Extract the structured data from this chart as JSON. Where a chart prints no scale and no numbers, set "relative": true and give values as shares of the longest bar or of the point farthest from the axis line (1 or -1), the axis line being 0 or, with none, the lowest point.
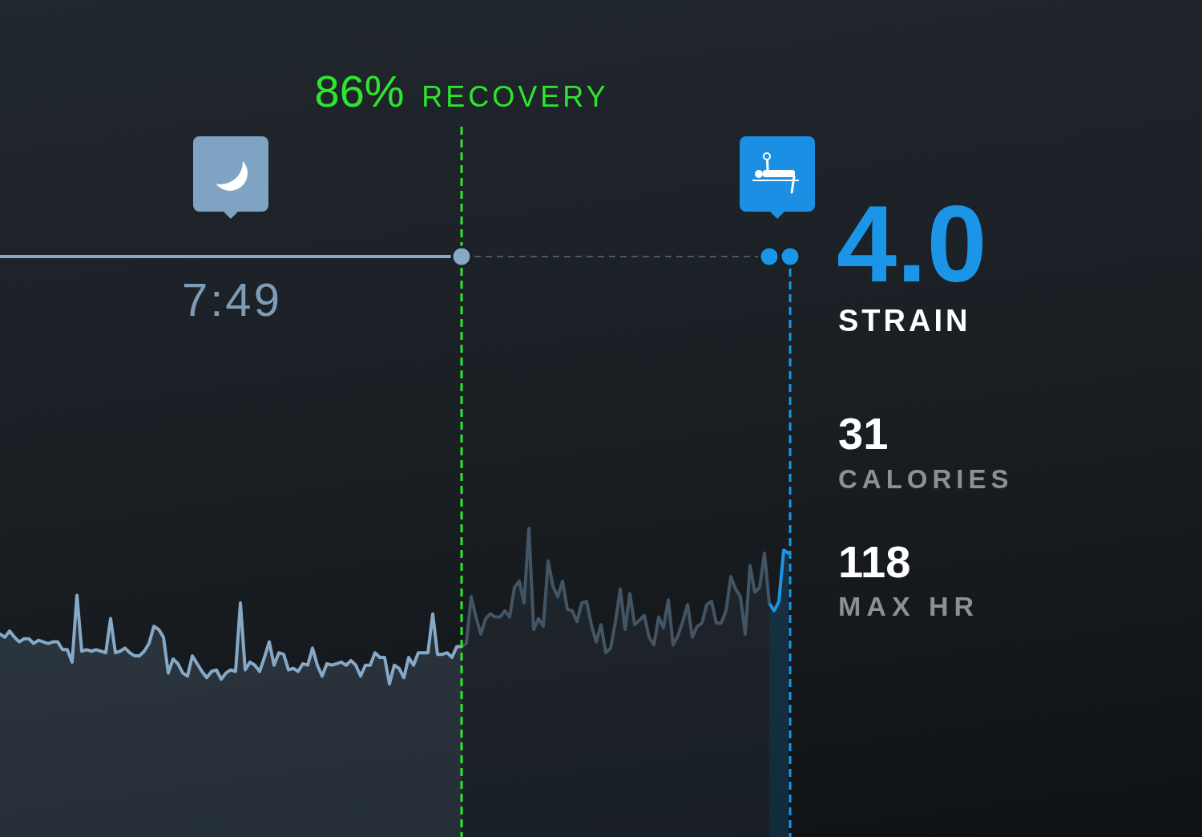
{
  "chart_data": {
    "type": "area",
    "relative": true,
    "tick_labels": false,
    "marker": "none",
    "categories": [
      null,
      null,
      null,
      null,
      null,
      null,
      null,
      null,
      null,
      null,
      null,
      null,
      null,
      null,
      null,
      null,
      null,
      null,
      null,
      null,
      null,
      null,
      null,
      null,
      null,
      null,
      null,
      null,
      null,
      null,
      null,
      null,
      null,
      null,
      null,
      null,
      null,
      null,
      null,
      null,
      null,
      null,
      null,
      null,
      null,
      null,
      null,
      null,
      null,
      null,
      null,
      null,
      null,
      null,
      null,
      null,
      null,
      null,
      null,
      null,
      null,
      null,
      null,
      null,
      null,
      null,
      null,
      null,
      null,
      null,
      null,
      null,
      null,
      null,
      null,
      null,
      null,
      null,
      null,
      null,
      null,
      null,
      null,
      null,
      null,
      null,
      null,
      null,
      null,
      null,
      null,
      null,
      null,
      null,
      null,
      null,
      null,
      null,
      null,
      null,
      null,
      null,
      null,
      null,
      null,
      null,
      null,
      null,
      null,
      null,
      null,
      null,
      null,
      null,
      null,
      null,
      null,
      null,
      null,
      null,
      null,
      null,
      null,
      null,
      null,
      null,
      null,
      null,
      null,
      null,
      null,
      null,
      null,
      null,
      null,
      null,
      null,
      null,
      null,
      null,
      null,
      null,
      null,
      null,
      null,
      null,
      null,
      null,
      null,
      null,
      null,
      null,
      null,
      null,
      null,
      null,
      null,
      null,
      null,
      null,
      null,
      null,
      null,
      null,
      null
    ],
    "series": [
      {
        "color": "#85a9c6",
        "values": [
          0.32,
          0.3,
          0.34,
          0.3,
          0.27,
          0.29,
          0.29,
          0.26,
          0.28,
          0.27,
          0.26,
          0.27,
          0.27,
          0.22,
          0.22,
          0.14,
          0.57,
          0.21,
          0.22,
          0.21,
          0.22,
          0.21,
          0.2,
          0.42,
          0.2,
          0.21,
          0.23,
          0.2,
          0.18,
          0.18,
          0.21,
          0.26,
          0.37,
          0.35,
          0.3,
          0.07,
          0.16,
          0.13,
          0.07,
          0.05,
          0.18,
          0.13,
          0.08,
          0.04,
          0.08,
          0.09,
          0.03,
          0.07,
          0.09,
          0.08,
          0.52,
          0.09,
          0.14,
          0.12,
          0.08,
          0.17,
          0.27,
          0.12,
          0.2,
          0.19,
          0.09,
          0.1,
          0.08,
          0.13,
          0.12,
          0.23,
          0.12,
          0.05,
          0.13,
          0.12,
          0.13,
          0.14,
          0.12,
          0.15,
          0.12,
          0.05,
          0.12,
          0.12,
          0.2,
          0.17,
          0.17,
          0,
          0.12,
          0.1,
          0.04,
          0.17,
          0.12,
          0.2,
          0.2,
          0.2,
          0.45,
          0.19,
          0.19,
          0.2,
          0.17,
          0.24,
          0.24,
          null,
          null,
          null,
          null,
          null,
          null,
          null,
          null,
          null,
          null,
          null,
          null,
          null,
          null,
          null,
          null,
          null,
          null,
          null,
          null,
          null,
          null,
          null,
          null,
          null,
          null,
          null,
          null,
          null,
          null,
          null,
          null,
          null,
          null,
          null,
          null,
          null,
          null,
          null,
          null,
          null,
          null,
          null,
          null,
          null,
          null,
          null,
          null,
          null,
          null,
          null,
          null,
          null,
          null,
          null,
          null,
          null,
          null,
          null,
          null,
          null,
          null,
          null,
          null,
          null,
          null,
          null,
          null
        ]
      },
      {
        "color": "#435564",
        "values": [
          null,
          null,
          null,
          null,
          null,
          null,
          null,
          null,
          null,
          null,
          null,
          null,
          null,
          null,
          null,
          null,
          null,
          null,
          null,
          null,
          null,
          null,
          null,
          null,
          null,
          null,
          null,
          null,
          null,
          null,
          null,
          null,
          null,
          null,
          null,
          null,
          null,
          null,
          null,
          null,
          null,
          null,
          null,
          null,
          null,
          null,
          null,
          null,
          null,
          null,
          null,
          null,
          null,
          null,
          null,
          null,
          null,
          null,
          null,
          null,
          null,
          null,
          null,
          null,
          null,
          null,
          null,
          null,
          null,
          null,
          null,
          null,
          null,
          null,
          null,
          null,
          null,
          null,
          null,
          null,
          null,
          null,
          null,
          null,
          null,
          null,
          null,
          null,
          null,
          null,
          null,
          null,
          null,
          null,
          null,
          null,
          0.24,
          0.26,
          0.56,
          0.43,
          0.32,
          0.42,
          0.45,
          0.43,
          0.43,
          0.47,
          0.43,
          0.62,
          0.66,
          0.52,
          1,
          0.35,
          0.42,
          0.37,
          0.79,
          0.63,
          0.56,
          0.66,
          0.48,
          0.47,
          0.4,
          0.52,
          0.53,
          0.38,
          0.27,
          0.38,
          0.2,
          0.23,
          0.4,
          0.61,
          0.35,
          0.58,
          0.38,
          0.41,
          0.44,
          0.3,
          0.25,
          0.43,
          0.36,
          0.54,
          0.25,
          0.31,
          0.4,
          0.51,
          0.3,
          0.37,
          0.39,
          0.51,
          0.53,
          0.39,
          0.39,
          0.47,
          0.69,
          0.61,
          0.56,
          0.32,
          0.76,
          0.59,
          0.62,
          0.84,
          0.52,
          null,
          null,
          null,
          null
        ]
      },
      {
        "color": "#1b95e8",
        "values": [
          null,
          null,
          null,
          null,
          null,
          null,
          null,
          null,
          null,
          null,
          null,
          null,
          null,
          null,
          null,
          null,
          null,
          null,
          null,
          null,
          null,
          null,
          null,
          null,
          null,
          null,
          null,
          null,
          null,
          null,
          null,
          null,
          null,
          null,
          null,
          null,
          null,
          null,
          null,
          null,
          null,
          null,
          null,
          null,
          null,
          null,
          null,
          null,
          null,
          null,
          null,
          null,
          null,
          null,
          null,
          null,
          null,
          null,
          null,
          null,
          null,
          null,
          null,
          null,
          null,
          null,
          null,
          null,
          null,
          null,
          null,
          null,
          null,
          null,
          null,
          null,
          null,
          null,
          null,
          null,
          null,
          null,
          null,
          null,
          null,
          null,
          null,
          null,
          null,
          null,
          null,
          null,
          null,
          null,
          null,
          null,
          null,
          null,
          null,
          null,
          null,
          null,
          null,
          null,
          null,
          null,
          null,
          null,
          null,
          null,
          null,
          null,
          null,
          null,
          null,
          null,
          null,
          null,
          null,
          null,
          null,
          null,
          null,
          null,
          null,
          null,
          null,
          null,
          null,
          null,
          null,
          null,
          null,
          null,
          null,
          null,
          null,
          null,
          null,
          null,
          null,
          null,
          null,
          null,
          null,
          null,
          null,
          null,
          null,
          null,
          null,
          null,
          null,
          null,
          null,
          null,
          null,
          null,
          null,
          null,
          0.52,
          0.47,
          0.53,
          0.86,
          0.84
        ]
      }
    ],
    "annotations": [
      "86% RECOVERY",
      "7:49",
      "4.0",
      "STRAIN",
      "31",
      "CALORIES",
      "118",
      "MAX HR"
    ]
  }
}
